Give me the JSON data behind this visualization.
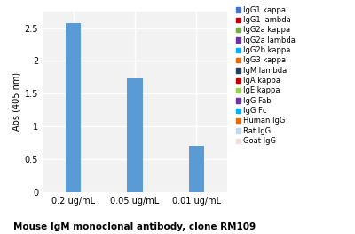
{
  "categories": [
    "0.2 ug/mL",
    "0.05 ug/mL",
    "0.01 ug/mL"
  ],
  "values": [
    2.57,
    1.73,
    0.7
  ],
  "bar_color": "#5B9BD5",
  "ylabel": "Abs (405 nm)",
  "xlabel": "Mouse IgM monoclonal antibody, clone RM109",
  "ylim": [
    0,
    2.75
  ],
  "yticks": [
    0,
    0.5,
    1,
    1.5,
    2,
    2.5
  ],
  "legend_entries": [
    {
      "label": "IgG1 kappa",
      "color": "#4472C4"
    },
    {
      "label": "IgG1 lambda",
      "color": "#C00000"
    },
    {
      "label": "IgG2a kappa",
      "color": "#70AD47"
    },
    {
      "label": "IgG2a lambda",
      "color": "#7030A0"
    },
    {
      "label": "IgG2b kappa",
      "color": "#00B0F0"
    },
    {
      "label": "IgG3 kappa",
      "color": "#E36C09"
    },
    {
      "label": "IgM lambda",
      "color": "#243F60"
    },
    {
      "label": "IgA kappa",
      "color": "#C00000"
    },
    {
      "label": "IgE kappa",
      "color": "#92D050"
    },
    {
      "label": "IgG Fab",
      "color": "#7030A0"
    },
    {
      "label": "IgG Fc",
      "color": "#00B0F0"
    },
    {
      "label": "Human IgG",
      "color": "#E36C09"
    },
    {
      "label": "Rat IgG",
      "color": "#BDD7EE"
    },
    {
      "label": "Goat IgG",
      "color": "#F2DCDB"
    }
  ],
  "background_color": "#FFFFFF",
  "plot_bg_color": "#F2F2F2",
  "grid_color": "#FFFFFF",
  "axis_fontsize": 7,
  "legend_fontsize": 6,
  "tick_fontsize": 7,
  "xlabel_fontsize": 7.5,
  "bar_width": 0.25
}
